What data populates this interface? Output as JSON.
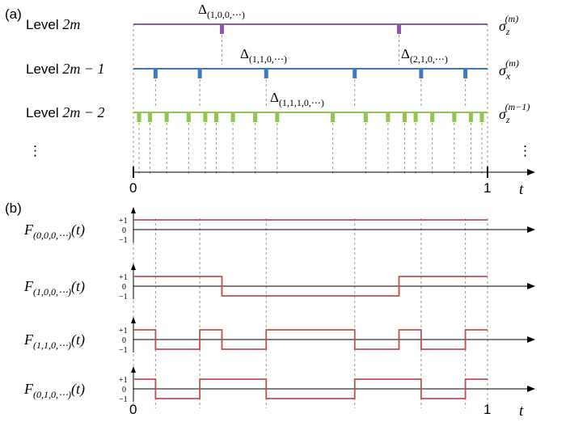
{
  "panel_a": {
    "label": "(a)",
    "levels": [
      {
        "label": "Level 2m",
        "label_parts": {
          "prefix": "Level",
          "math": "2m"
        },
        "operator": {
          "base": "σ",
          "sub": "z",
          "sup": "(m)"
        },
        "color": "#8c5aa6",
        "switch_times": [
          0.25,
          0.75
        ],
        "annotations": [
          {
            "base": "Δ",
            "sub": "(1,0,0,⋯)"
          }
        ]
      },
      {
        "label": "Level 2m − 1",
        "label_parts": {
          "prefix": "Level",
          "math": "2m − 1"
        },
        "operator": {
          "base": "σ",
          "sub": "x",
          "sup": "(m)"
        },
        "color": "#3a7bbf",
        "switch_times": [
          0.0625,
          0.1875,
          0.375,
          0.625,
          0.8125,
          0.9375
        ],
        "annotations": [
          {
            "base": "Δ",
            "sub": "(1,1,0,⋯)"
          },
          {
            "base": "Δ",
            "sub": "(2,1,0,⋯)"
          }
        ]
      },
      {
        "label": "Level 2m − 2",
        "label_parts": {
          "prefix": "Level",
          "math": "2m − 2"
        },
        "operator": {
          "base": "σ",
          "sub": "z",
          "sup": "(m−1)"
        },
        "color": "#8ec64e",
        "switch_times": [
          0.016,
          0.047,
          0.094,
          0.156,
          0.203,
          0.234,
          0.281,
          0.344,
          0.406,
          0.563,
          0.656,
          0.719,
          0.766,
          0.797,
          0.844,
          0.906,
          0.953,
          0.984
        ],
        "annotations": [
          {
            "base": "Δ",
            "sub": "(1,1,1,0,⋯)"
          }
        ]
      }
    ],
    "ellipsis": "⋮",
    "axis": {
      "start_label": "0",
      "end_label": "1",
      "var_label": "t"
    }
  },
  "panel_b": {
    "label": "(b)",
    "ticks": {
      "plus": "+1",
      "zero": "0",
      "minus": "−1"
    },
    "line_color": "#c0504d",
    "functions": [
      {
        "name": {
          "base": "F",
          "sub": "(0,0,0,⋯)",
          "arg": "(t)"
        },
        "segments": [
          {
            "t0": 0,
            "t1": 1,
            "v": 1
          }
        ]
      },
      {
        "name": {
          "base": "F",
          "sub": "(1,0,0,⋯)",
          "arg": "(t)"
        },
        "segments": [
          {
            "t0": 0,
            "t1": 0.25,
            "v": 1
          },
          {
            "t0": 0.25,
            "t1": 0.75,
            "v": -1
          },
          {
            "t0": 0.75,
            "t1": 1,
            "v": 1
          }
        ]
      },
      {
        "name": {
          "base": "F",
          "sub": "(1,1,0,⋯)",
          "arg": "(t)"
        },
        "segments": [
          {
            "t0": 0,
            "t1": 0.0625,
            "v": 1
          },
          {
            "t0": 0.0625,
            "t1": 0.1875,
            "v": -1
          },
          {
            "t0": 0.1875,
            "t1": 0.25,
            "v": 1
          },
          {
            "t0": 0.25,
            "t1": 0.375,
            "v": -1
          },
          {
            "t0": 0.375,
            "t1": 0.625,
            "v": 1
          },
          {
            "t0": 0.625,
            "t1": 0.75,
            "v": -1
          },
          {
            "t0": 0.75,
            "t1": 0.8125,
            "v": 1
          },
          {
            "t0": 0.8125,
            "t1": 0.9375,
            "v": -1
          },
          {
            "t0": 0.9375,
            "t1": 1,
            "v": 1
          }
        ]
      },
      {
        "name": {
          "base": "F",
          "sub": "(0,1,0,⋯)",
          "arg": "(t)"
        },
        "segments": [
          {
            "t0": 0,
            "t1": 0.0625,
            "v": 1
          },
          {
            "t0": 0.0625,
            "t1": 0.1875,
            "v": -1
          },
          {
            "t0": 0.1875,
            "t1": 0.375,
            "v": 1
          },
          {
            "t0": 0.375,
            "t1": 0.625,
            "v": -1
          },
          {
            "t0": 0.625,
            "t1": 0.8125,
            "v": 1
          },
          {
            "t0": 0.8125,
            "t1": 0.9375,
            "v": -1
          },
          {
            "t0": 0.9375,
            "t1": 1,
            "v": 1
          }
        ]
      }
    ],
    "axis": {
      "start_label": "0",
      "end_label": "1",
      "var_label": "t"
    }
  }
}
